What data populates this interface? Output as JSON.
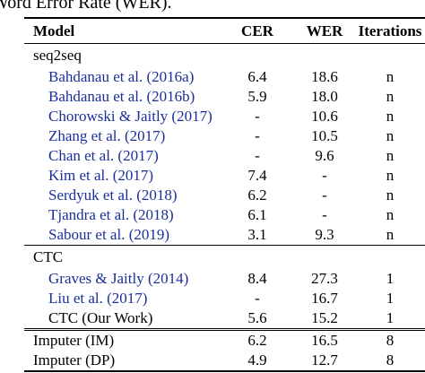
{
  "caption": "Word Error Rate (WER).",
  "columns": {
    "model": "Model",
    "cer": "CER",
    "wer": "WER",
    "iterations": "Iterations"
  },
  "groups": {
    "seq2seq": {
      "label": "seq2seq",
      "rows": [
        {
          "name": "Bahdanau et al. (2016a)",
          "cer": "6.4",
          "wer": "18.6",
          "iterations": "n"
        },
        {
          "name": "Bahdanau et al. (2016b)",
          "cer": "5.9",
          "wer": "18.0",
          "iterations": "n"
        },
        {
          "name": "Chorowski & Jaitly (2017)",
          "cer": "-",
          "wer": "10.6",
          "iterations": "n"
        },
        {
          "name": "Zhang et al. (2017)",
          "cer": "-",
          "wer": "10.5",
          "iterations": "n"
        },
        {
          "name": "Chan et al. (2017)",
          "cer": "-",
          "wer": "9.6",
          "iterations": "n"
        },
        {
          "name": "Kim et al. (2017)",
          "cer": "7.4",
          "wer": "-",
          "iterations": "n"
        },
        {
          "name": "Serdyuk et al. (2018)",
          "cer": "6.2",
          "wer": "-",
          "iterations": "n"
        },
        {
          "name": "Tjandra et al. (2018)",
          "cer": "6.1",
          "wer": "-",
          "iterations": "n"
        },
        {
          "name": "Sabour et al. (2019)",
          "cer": "3.1",
          "wer": "9.3",
          "iterations": "n"
        }
      ]
    },
    "ctc": {
      "label": "CTC",
      "rows": [
        {
          "name": "Graves & Jaitly (2014)",
          "cer": "8.4",
          "wer": "27.3",
          "iterations": "1"
        },
        {
          "name": "Liu et al. (2017)",
          "cer": "-",
          "wer": "16.7",
          "iterations": "1"
        },
        {
          "name": "CTC (Our Work)",
          "cer": "5.6",
          "wer": "15.2",
          "iterations": "1"
        }
      ]
    },
    "imputer": {
      "rows": [
        {
          "name": "Imputer (IM)",
          "cer": "6.2",
          "wer": "16.5",
          "iterations": "8"
        },
        {
          "name": "Imputer (DP)",
          "cer": "4.9",
          "wer": "12.7",
          "iterations": "8"
        }
      ]
    }
  },
  "colors": {
    "citation_link": "#1a2f9a",
    "text": "#000000"
  }
}
